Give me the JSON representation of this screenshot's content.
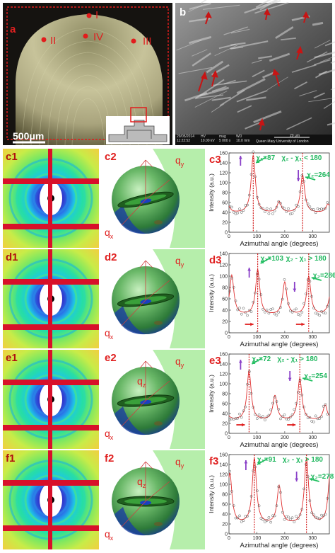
{
  "top": {
    "panel_a": {
      "label": "a",
      "scale_bar": "500μm",
      "points": [
        "I",
        "II",
        "IV",
        "III"
      ]
    },
    "panel_b": {
      "label": "b",
      "sem_footer": {
        "date": "29/05/2014",
        "time": "11:22:52",
        "hv": "10.00 kV",
        "mag": "5 000 x",
        "wd": "10.0 mm",
        "scale": "20 μm",
        "inst": "Queen Mary University of London",
        "hv_label": "HV",
        "mag_label": "mag",
        "wd_label": "WD"
      }
    }
  },
  "labels": {
    "q_y": "q",
    "q_y_sub": "y",
    "q_x": "q",
    "q_x_sub": "x",
    "q_z": "q",
    "q_z_sub": "z"
  },
  "rows": [
    {
      "saxs": "c1",
      "model": "c2",
      "plot": "c3",
      "qz": false
    },
    {
      "saxs": "d1",
      "model": "d2",
      "plot": "d3",
      "qz": false
    },
    {
      "saxs": "e1",
      "model": "e2",
      "plot": "e3",
      "qz": true
    },
    {
      "saxs": "f1",
      "model": "f2",
      "plot": "f3",
      "qz": true
    }
  ],
  "chart_data": [
    {
      "type": "scatter",
      "label": "c3",
      "xlabel": "Azimuthal angle (degrees)",
      "ylabel": "Intensity (a.u.)",
      "xlim": [
        0,
        360
      ],
      "ylim": [
        0,
        160
      ],
      "xticks": [
        0,
        100,
        200,
        300
      ],
      "yticks": [
        0,
        20,
        40,
        60,
        80,
        100,
        120,
        140,
        160
      ],
      "peaks": [
        {
          "x": 87,
          "y": 155
        },
        {
          "x": 180,
          "y": 60
        },
        {
          "x": 264,
          "y": 115
        },
        {
          "x": 355,
          "y": 55
        }
      ],
      "baseline": 38,
      "vlines": [
        87,
        264
      ],
      "annotations": {
        "chi1": "χ₁=87",
        "chi2": "χ₂=264",
        "relation": "χ₂ - χ₁ < 180"
      }
    },
    {
      "type": "scatter",
      "label": "d3",
      "xlabel": "Azimuthal angle (degrees)",
      "ylabel": "Intensity (a.u.)",
      "xlim": [
        0,
        360
      ],
      "ylim": [
        0,
        140
      ],
      "xticks": [
        0,
        100,
        200,
        300
      ],
      "yticks": [
        0,
        20,
        40,
        60,
        80,
        100,
        120,
        140
      ],
      "peaks": [
        {
          "x": 10,
          "y": 100
        },
        {
          "x": 103,
          "y": 110
        },
        {
          "x": 200,
          "y": 88
        },
        {
          "x": 286,
          "y": 98
        }
      ],
      "baseline": 30,
      "vlines": [
        103,
        286
      ],
      "annotations": {
        "chi1": "χ₁=103",
        "chi2": "χ₂=286",
        "relation": "χ₂ - χ₁ > 180"
      }
    },
    {
      "type": "scatter",
      "label": "e3",
      "xlabel": "Azimuthal angle (degrees)",
      "ylabel": "Intensity (a.u.)",
      "xlim": [
        0,
        360
      ],
      "ylim": [
        0,
        160
      ],
      "xticks": [
        0,
        100,
        200,
        300
      ],
      "yticks": [
        0,
        20,
        40,
        60,
        80,
        100,
        120,
        140,
        160
      ],
      "peaks": [
        {
          "x": 72,
          "y": 125
        },
        {
          "x": 165,
          "y": 75
        },
        {
          "x": 254,
          "y": 110
        },
        {
          "x": 345,
          "y": 55
        }
      ],
      "baseline": 25,
      "vlines": [
        72,
        254
      ],
      "annotations": {
        "chi1": "χ₁=72",
        "chi2": "χ₂=254",
        "relation": "χ₂ - χ₁ > 180"
      }
    },
    {
      "type": "scatter",
      "label": "f3",
      "xlabel": "Azimuthal angle (degrees)",
      "ylabel": "Intensity (a.u.)",
      "xlim": [
        0,
        360
      ],
      "ylim": [
        0,
        160
      ],
      "xticks": [
        0,
        100,
        200,
        300
      ],
      "yticks": [
        0,
        20,
        40,
        60,
        80,
        100,
        120,
        140,
        160
      ],
      "peaks": [
        {
          "x": 3,
          "y": 120
        },
        {
          "x": 91,
          "y": 150
        },
        {
          "x": 180,
          "y": 95
        },
        {
          "x": 278,
          "y": 150
        }
      ],
      "baseline": 18,
      "vlines": [
        91,
        278
      ],
      "annotations": {
        "chi1": "χ₁=91",
        "chi2": "χ₂=278",
        "relation": "χ₂ - χ₁ > 180"
      }
    }
  ]
}
